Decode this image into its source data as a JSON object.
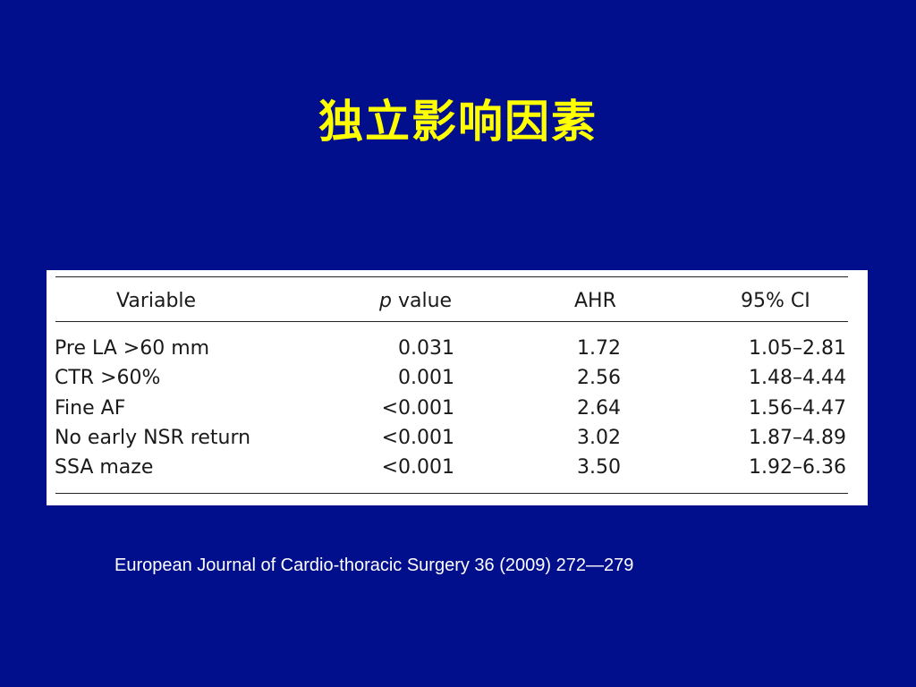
{
  "slide": {
    "title": "独立影响因素",
    "citation": "European Journal of Cardio-thoracic Surgery 36 (2009) 272—279",
    "colors": {
      "background": "#020f8c",
      "title": "#ffff00",
      "citation": "#ffffff",
      "table_background": "#ffffff"
    }
  },
  "table": {
    "headers": {
      "variable": "Variable",
      "p_symbol": "p",
      "p_word": " value",
      "ahr": "AHR",
      "ci": "95% CI"
    },
    "rows": [
      {
        "variable": "Pre LA >60 mm",
        "p": "0.031",
        "ahr": "1.72",
        "ci": "1.05–2.81"
      },
      {
        "variable": "CTR >60%",
        "p": "0.001",
        "ahr": "2.56",
        "ci": "1.48–4.44"
      },
      {
        "variable": "Fine AF",
        "p": "<0.001",
        "ahr": "2.64",
        "ci": "1.56–4.47"
      },
      {
        "variable": "No early NSR return",
        "p": "<0.001",
        "ahr": "3.02",
        "ci": "1.87–4.89"
      },
      {
        "variable": "SSA maze",
        "p": "<0.001",
        "ahr": "3.50",
        "ci": "1.92–6.36"
      }
    ]
  }
}
